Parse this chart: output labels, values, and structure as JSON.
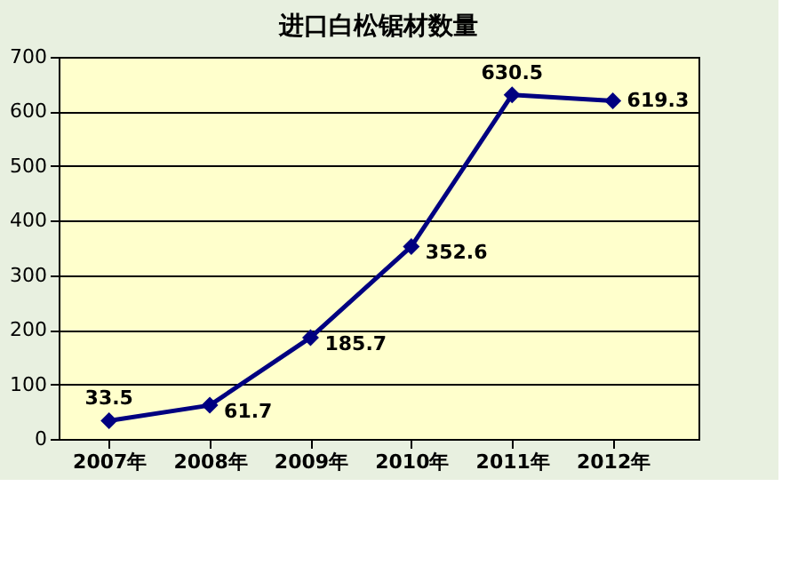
{
  "chart_data": {
    "type": "line",
    "title": "进口白松锯材数量",
    "categories": [
      "2007年",
      "2008年",
      "2009年",
      "2010年",
      "2011年",
      "2012年"
    ],
    "series": [
      {
        "color": "#000080",
        "values": [
          33.5,
          61.7,
          185.7,
          352.6,
          630.5,
          619.3
        ]
      }
    ],
    "ylim": [
      0,
      700
    ],
    "yticks": [
      0,
      100,
      200,
      300,
      400,
      500,
      600,
      700
    ],
    "grid": "y",
    "marker": "diamond",
    "line_style": "solid",
    "data_labels": true
  }
}
